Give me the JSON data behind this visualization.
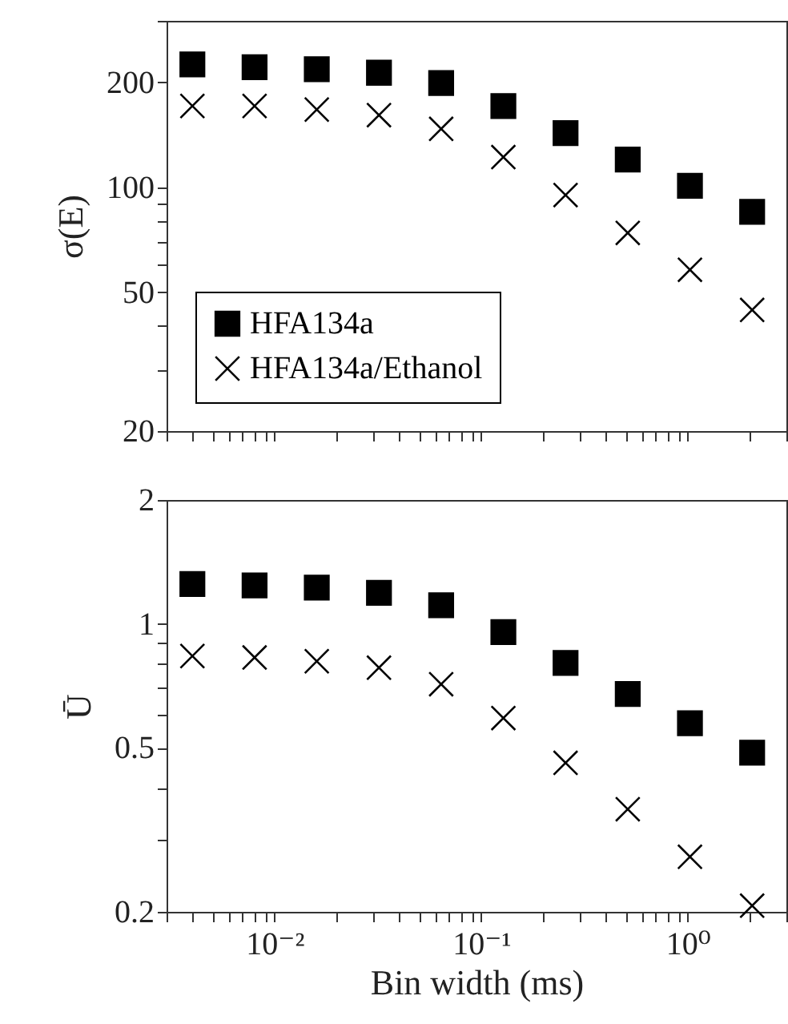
{
  "chart_data": [
    {
      "type": "scatter",
      "ylabel": "σ(E)",
      "log": "xy",
      "xlim": [
        0.003,
        3
      ],
      "ylim": [
        20,
        300
      ],
      "tick_labels": "y",
      "legend": "bottom left",
      "x": [
        0.004,
        0.008,
        0.016,
        0.032,
        0.064,
        0.128,
        0.256,
        0.512,
        1.024,
        2.048
      ],
      "xticks": [
        {
          "value": 0.003,
          "label": null
        },
        {
          "value": 0.004,
          "label": null
        },
        {
          "value": 0.005,
          "label": null
        },
        {
          "value": 0.006,
          "label": null
        },
        {
          "value": 0.007,
          "label": null
        },
        {
          "value": 0.008,
          "label": null
        },
        {
          "value": 0.009,
          "label": null
        },
        {
          "value": 0.01,
          "label": null
        },
        {
          "value": 0.02,
          "label": null
        },
        {
          "value": 0.03,
          "label": null
        },
        {
          "value": 0.04,
          "label": null
        },
        {
          "value": 0.05,
          "label": null
        },
        {
          "value": 0.06,
          "label": null
        },
        {
          "value": 0.07,
          "label": null
        },
        {
          "value": 0.08,
          "label": null
        },
        {
          "value": 0.09,
          "label": null
        },
        {
          "value": 0.1,
          "label": null
        },
        {
          "value": 0.2,
          "label": null
        },
        {
          "value": 0.3,
          "label": null
        },
        {
          "value": 0.4,
          "label": null
        },
        {
          "value": 0.5,
          "label": null
        },
        {
          "value": 0.6,
          "label": null
        },
        {
          "value": 0.7,
          "label": null
        },
        {
          "value": 0.8,
          "label": null
        },
        {
          "value": 0.9,
          "label": null
        },
        {
          "value": 1,
          "label": null
        },
        {
          "value": 2,
          "label": null
        },
        {
          "value": 3,
          "label": null
        }
      ],
      "yticks": [
        20,
        {
          "value": 30,
          "label": null
        },
        {
          "value": 40,
          "label": null
        },
        50,
        {
          "value": 60,
          "label": null
        },
        {
          "value": 70,
          "label": null
        },
        {
          "value": 80,
          "label": null
        },
        {
          "value": 90,
          "label": null
        },
        100,
        200,
        {
          "value": 300,
          "label": null
        }
      ],
      "series": [
        {
          "name": "HFA134a",
          "color": "#000000",
          "marker": "square",
          "values": [
            225,
            221,
            218,
            213,
            199,
            171,
            143,
            120,
            101,
            85
          ]
        },
        {
          "name": "HFA134a/Ethanol",
          "color": "#000000",
          "marker": "cross",
          "values": [
            171,
            171,
            167,
            161,
            147,
            122,
            95,
            74,
            58,
            44.5
          ]
        }
      ]
    },
    {
      "type": "scatter",
      "xlabel": "Bin width (ms)",
      "ylabel": "Ū",
      "log": "xy",
      "xlim": [
        0.003,
        3
      ],
      "ylim": [
        0.2,
        2
      ],
      "x": [
        0.004,
        0.008,
        0.016,
        0.032,
        0.064,
        0.128,
        0.256,
        0.512,
        1.024,
        2.048
      ],
      "xticks": [
        {
          "value": 0.003,
          "label": null
        },
        {
          "value": 0.004,
          "label": null
        },
        {
          "value": 0.005,
          "label": null
        },
        {
          "value": 0.006,
          "label": null
        },
        {
          "value": 0.007,
          "label": null
        },
        {
          "value": 0.008,
          "label": null
        },
        {
          "value": 0.009,
          "label": null
        },
        {
          "value": 0.01,
          "label": "10⁻²"
        },
        {
          "value": 0.02,
          "label": null
        },
        {
          "value": 0.03,
          "label": null
        },
        {
          "value": 0.04,
          "label": null
        },
        {
          "value": 0.05,
          "label": null
        },
        {
          "value": 0.06,
          "label": null
        },
        {
          "value": 0.07,
          "label": null
        },
        {
          "value": 0.08,
          "label": null
        },
        {
          "value": 0.09,
          "label": null
        },
        {
          "value": 0.1,
          "label": "10⁻¹"
        },
        {
          "value": 0.2,
          "label": null
        },
        {
          "value": 0.3,
          "label": null
        },
        {
          "value": 0.4,
          "label": null
        },
        {
          "value": 0.5,
          "label": null
        },
        {
          "value": 0.6,
          "label": null
        },
        {
          "value": 0.7,
          "label": null
        },
        {
          "value": 0.8,
          "label": null
        },
        {
          "value": 0.9,
          "label": null
        },
        {
          "value": 1,
          "label": "10⁰"
        },
        {
          "value": 2,
          "label": null
        },
        {
          "value": 3,
          "label": null
        }
      ],
      "yticks": [
        0.2,
        {
          "value": 0.3,
          "label": null
        },
        {
          "value": 0.4,
          "label": null
        },
        0.5,
        {
          "value": 0.6,
          "label": null
        },
        {
          "value": 0.7,
          "label": null
        },
        {
          "value": 0.8,
          "label": null
        },
        {
          "value": 0.9,
          "label": null
        },
        1,
        2
      ],
      "series": [
        {
          "color": "#000000",
          "marker": "square",
          "values": [
            1.25,
            1.24,
            1.225,
            1.19,
            1.11,
            0.956,
            0.804,
            0.676,
            0.574,
            0.487
          ]
        },
        {
          "color": "#000000",
          "marker": "cross",
          "values": [
            0.836,
            0.829,
            0.812,
            0.783,
            0.714,
            0.591,
            0.46,
            0.355,
            0.272,
            0.207
          ]
        }
      ]
    }
  ]
}
